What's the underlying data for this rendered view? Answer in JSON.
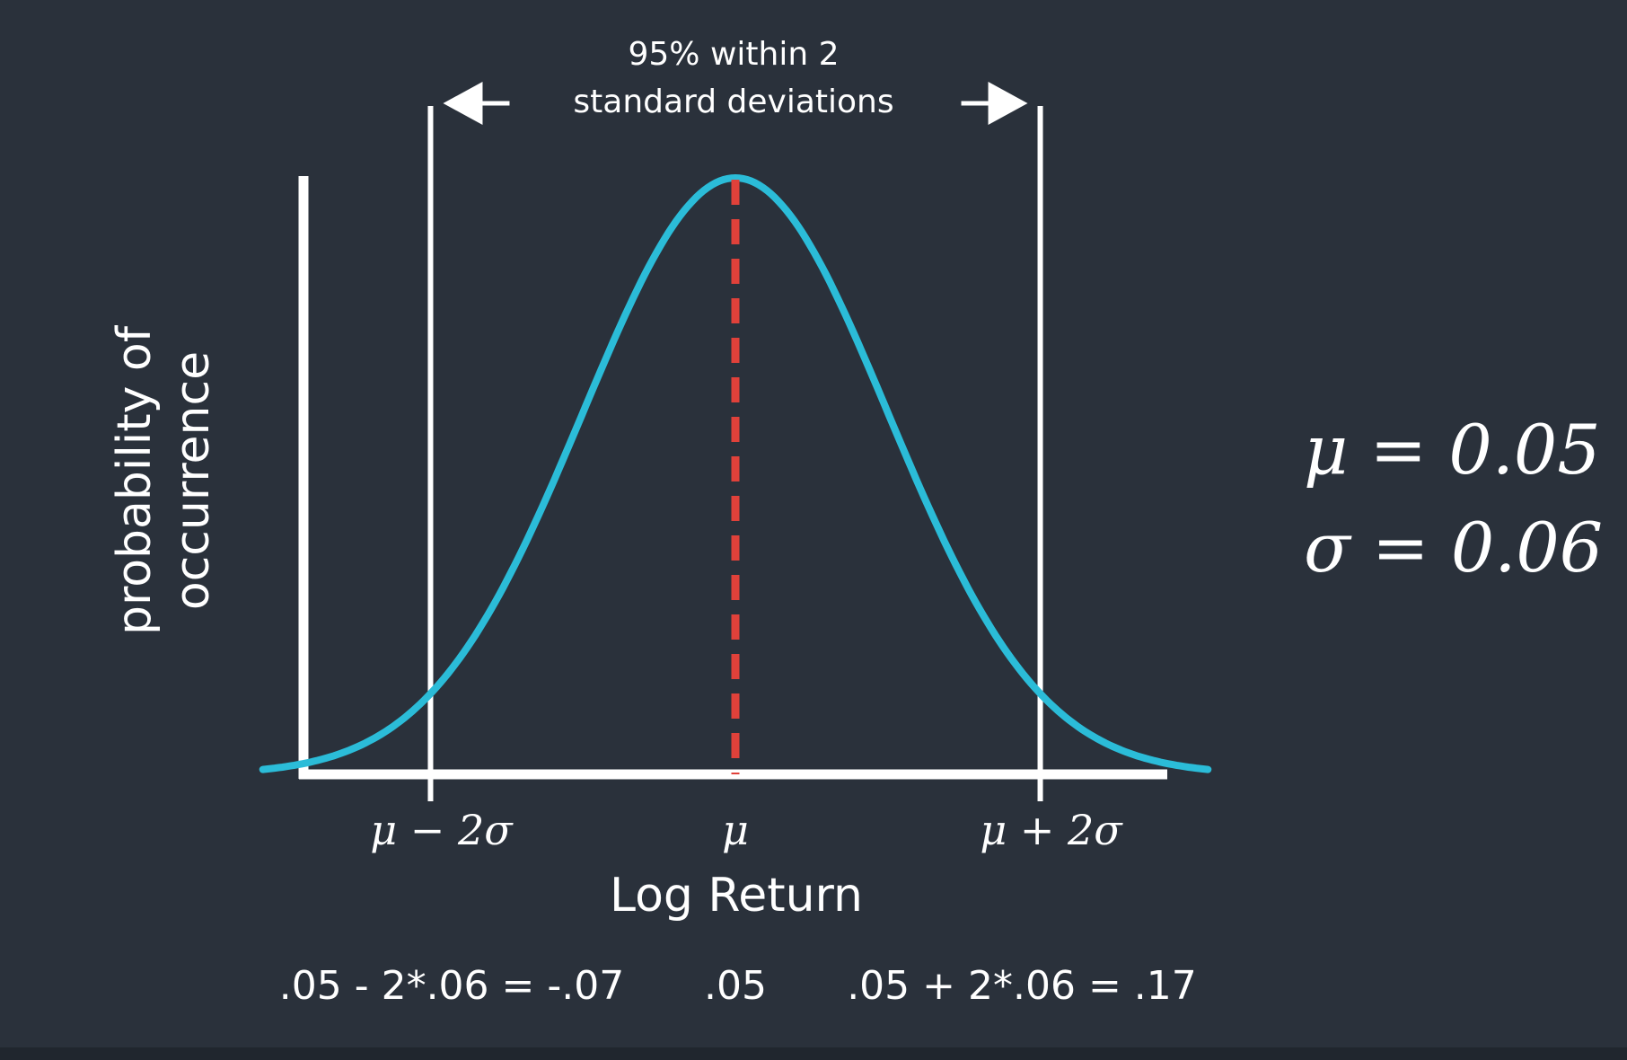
{
  "chart_data": {
    "type": "line",
    "distribution": "normal",
    "mean": 0.05,
    "std": 0.06,
    "xlim": [
      -0.12,
      0.22
    ],
    "ylabel": "probability of occurrence",
    "xlabel": "Log Return",
    "tick_labels": [
      "μ − 2σ",
      "μ",
      "μ + 2σ"
    ],
    "tick_values": [
      -0.07,
      0.05,
      0.17
    ],
    "computed_labels": [
      ".05 - 2*.06 = -.07",
      ".05",
      ".05 + 2*.06 = .17"
    ],
    "annotation": {
      "line1": "95% within 2",
      "line2": "standard deviations"
    },
    "params": {
      "mu_label": "μ = 0.05",
      "sigma_label": "σ = 0.06"
    },
    "colors": {
      "background": "#2a313b",
      "curve": "#2bbcd8",
      "mean_line": "#e0413a",
      "axis": "#ffffff"
    }
  }
}
